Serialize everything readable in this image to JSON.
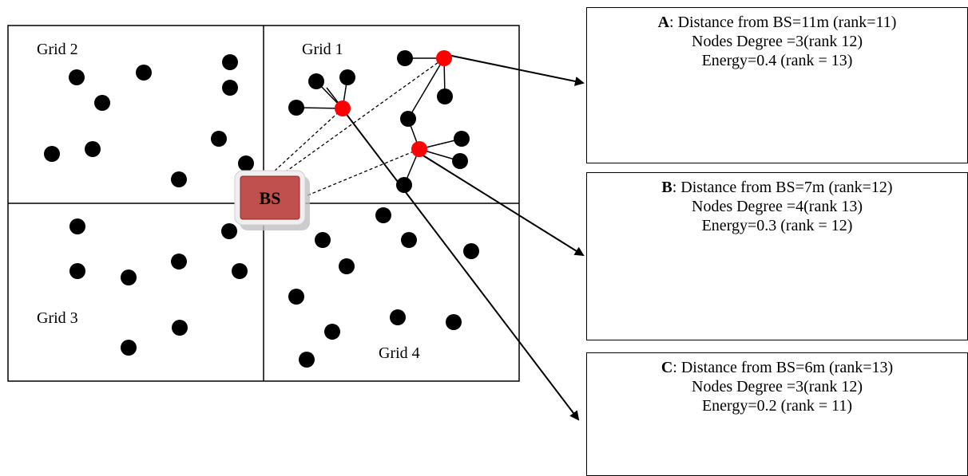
{
  "colors": {
    "normal_node": "#000000",
    "cluster_head": "#ff0000",
    "bs_fill": "#c0504d",
    "bs_border": "#8c2e2b",
    "line": "#000000"
  },
  "grids": [
    "Grid 1",
    "Grid 2",
    "Grid 3",
    "Grid 4"
  ],
  "base_station": {
    "label": "BS"
  },
  "info_boxes": [
    {
      "letter": "A",
      "line1": ": Distance from BS=11m (rank=11)",
      "line2": "Nodes Degree =3(rank 12)",
      "line3": "Energy=0.4 (rank = 13)"
    },
    {
      "letter": "B",
      "line1": ": Distance from BS=7m (rank=12)",
      "line2": "Nodes Degree =4(rank 13)",
      "line3": "Energy=0.3 (rank = 12)"
    },
    {
      "letter": "C",
      "line1": ": Distance from BS=6m (rank=13)",
      "line2": "Nodes Degree =3(rank 12)",
      "line3": "Energy=0.2 (rank = 11)"
    }
  ]
}
